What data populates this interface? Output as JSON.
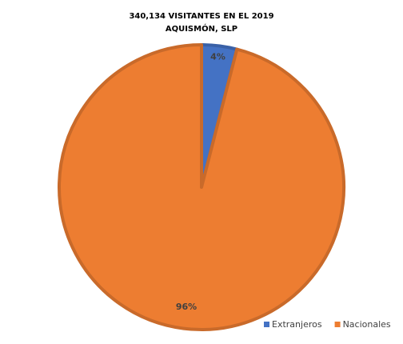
{
  "chart_data": {
    "type": "pie",
    "title": "340,134 VISITANTES  EN EL 2019",
    "subtitle": "AQUISMÓN,  SLP",
    "categories": [
      "Extranjeros",
      "Nacionales"
    ],
    "values": [
      4,
      96
    ],
    "value_labels": [
      "4%",
      "96%"
    ],
    "colors": [
      "#4472c4",
      "#ed7d31"
    ],
    "legend": "bottom-right"
  }
}
